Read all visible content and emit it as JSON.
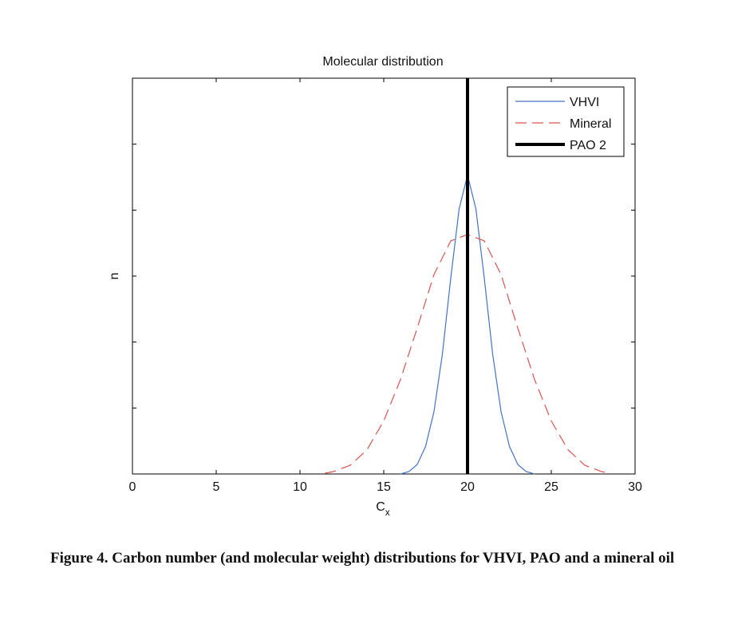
{
  "chart_data": {
    "type": "line",
    "title": "Molecular distribution",
    "xlabel_main": "C",
    "xlabel_sub": "x",
    "ylabel": "n",
    "xlim": [
      0,
      30
    ],
    "ylim": [
      0,
      1.0
    ],
    "x_ticks": [
      0,
      5,
      10,
      15,
      20,
      25,
      30
    ],
    "y_tick_count": 6,
    "grid": false,
    "legend_position": "top-right",
    "series": [
      {
        "name": "VHVI",
        "color": "#4472c4",
        "style": "solid",
        "x": [
          16,
          16.5,
          17,
          17.5,
          18,
          18.5,
          19,
          19.5,
          20,
          20.5,
          21,
          21.5,
          22,
          22.5,
          23,
          23.5,
          24
        ],
        "values": [
          0.0,
          0.006,
          0.024,
          0.07,
          0.158,
          0.303,
          0.495,
          0.67,
          0.755,
          0.67,
          0.495,
          0.303,
          0.158,
          0.07,
          0.024,
          0.006,
          0.0
        ]
      },
      {
        "name": "Mineral",
        "color": "#d9534f",
        "style": "dashed",
        "x": [
          11.5,
          12,
          13,
          14,
          15,
          16,
          17,
          18,
          19,
          20,
          21,
          22,
          23,
          24,
          25,
          26,
          27,
          28,
          28.5
        ],
        "values": [
          0.002,
          0.006,
          0.022,
          0.061,
          0.134,
          0.239,
          0.369,
          0.504,
          0.589,
          0.605,
          0.589,
          0.504,
          0.369,
          0.239,
          0.134,
          0.061,
          0.022,
          0.006,
          0.002
        ]
      },
      {
        "name": "PAO 2",
        "color": "#000000",
        "style": "thick-solid",
        "x": [
          20,
          20
        ],
        "values": [
          0,
          1.0
        ]
      }
    ]
  },
  "caption": "Figure 4. Carbon number (and molecular weight) distributions for VHVI, PAO and a mineral oil"
}
